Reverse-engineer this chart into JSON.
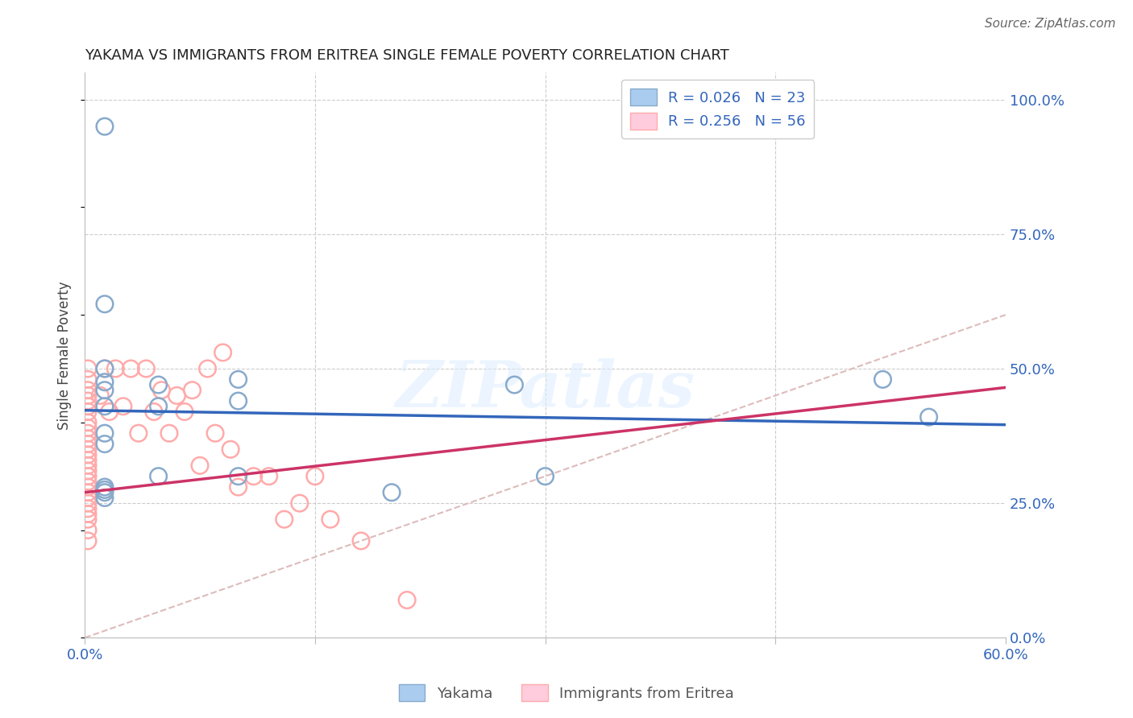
{
  "title": "YAKAMA VS IMMIGRANTS FROM ERITREA SINGLE FEMALE POVERTY CORRELATION CHART",
  "source": "Source: ZipAtlas.com",
  "ylabel": "Single Female Poverty",
  "xlim": [
    0.0,
    0.6
  ],
  "ylim": [
    0.0,
    1.05
  ],
  "xtick_positions": [
    0.0,
    0.15,
    0.3,
    0.45,
    0.6
  ],
  "xtick_labels": [
    "0.0%",
    "",
    "",
    "",
    "60.0%"
  ],
  "ytick_positions": [
    0.0,
    0.25,
    0.5,
    0.75,
    1.0
  ],
  "ytick_labels": [
    "0.0%",
    "25.0%",
    "50.0%",
    "75.0%",
    "100.0%"
  ],
  "blue_color": "#88AACC",
  "pink_color": "#FFAAAA",
  "blue_line_color": "#3366BB",
  "pink_line_color": "#CC3366",
  "diag_color": "#DDBBBB",
  "watermark_text": "ZIPatlas",
  "watermark_color": "#DDDDEE",
  "bg_color": "#FFFFFF",
  "legend_r1": "R = 0.026",
  "legend_n1": "N = 23",
  "legend_r2": "R = 0.256",
  "legend_n2": "N = 56",
  "legend_blue_face": "#AACCEE",
  "legend_pink_face": "#FFCCDD",
  "text_color": "#3366BB",
  "title_color": "#222222",
  "source_color": "#666666",
  "yakama_x": [
    0.013,
    0.013,
    0.013,
    0.013,
    0.013,
    0.013,
    0.013,
    0.013,
    0.048,
    0.048,
    0.048,
    0.1,
    0.1,
    0.1,
    0.2,
    0.28,
    0.3,
    0.52,
    0.55,
    0.013,
    0.013,
    0.013,
    0.013
  ],
  "yakama_y": [
    0.95,
    0.62,
    0.5,
    0.475,
    0.46,
    0.43,
    0.38,
    0.36,
    0.47,
    0.43,
    0.3,
    0.48,
    0.44,
    0.3,
    0.27,
    0.47,
    0.3,
    0.48,
    0.41,
    0.28,
    0.275,
    0.27,
    0.26
  ],
  "eritrea_x": [
    0.002,
    0.002,
    0.002,
    0.002,
    0.002,
    0.002,
    0.002,
    0.002,
    0.002,
    0.002,
    0.002,
    0.002,
    0.002,
    0.002,
    0.002,
    0.002,
    0.002,
    0.002,
    0.002,
    0.002,
    0.002,
    0.002,
    0.002,
    0.002,
    0.002,
    0.002,
    0.002,
    0.002,
    0.01,
    0.013,
    0.016,
    0.02,
    0.025,
    0.03,
    0.035,
    0.04,
    0.045,
    0.05,
    0.055,
    0.06,
    0.065,
    0.07,
    0.075,
    0.08,
    0.085,
    0.09,
    0.095,
    0.1,
    0.11,
    0.12,
    0.13,
    0.14,
    0.15,
    0.16,
    0.18,
    0.21
  ],
  "eritrea_y": [
    0.5,
    0.48,
    0.46,
    0.45,
    0.44,
    0.43,
    0.42,
    0.4,
    0.39,
    0.38,
    0.37,
    0.36,
    0.35,
    0.34,
    0.33,
    0.32,
    0.31,
    0.3,
    0.29,
    0.28,
    0.27,
    0.26,
    0.25,
    0.24,
    0.23,
    0.22,
    0.2,
    0.18,
    0.45,
    0.5,
    0.42,
    0.5,
    0.43,
    0.5,
    0.38,
    0.5,
    0.42,
    0.46,
    0.38,
    0.45,
    0.42,
    0.46,
    0.32,
    0.5,
    0.38,
    0.53,
    0.35,
    0.28,
    0.3,
    0.3,
    0.22,
    0.25,
    0.3,
    0.22,
    0.18,
    0.07
  ]
}
